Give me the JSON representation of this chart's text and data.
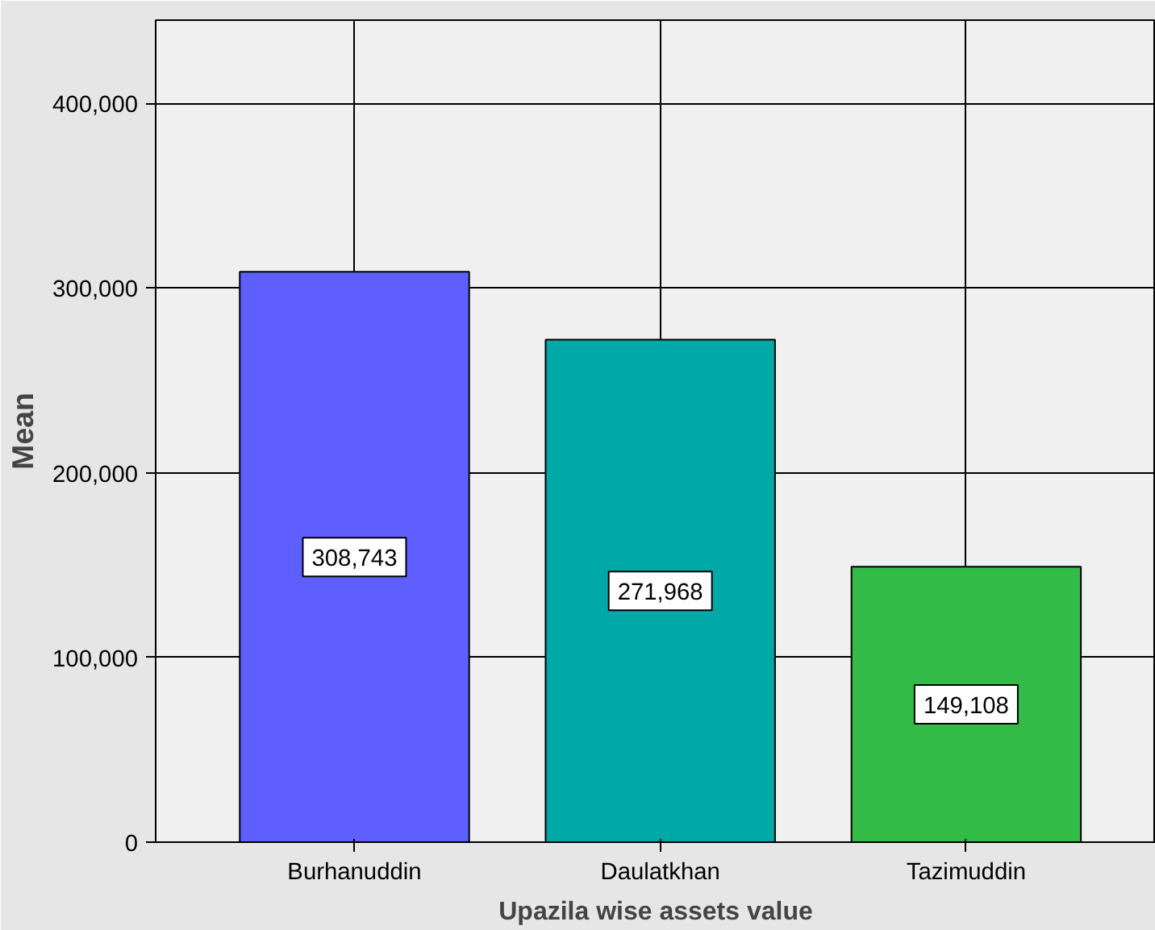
{
  "chart_data": {
    "type": "bar",
    "xlabel": "Upazila wise assets value",
    "ylabel": "Mean",
    "categories": [
      "Burhanuddin",
      "Daulatkhan",
      "Tazimuddin"
    ],
    "values": [
      308743,
      271968,
      149108
    ],
    "colors": [
      "#5f5fff",
      "#00a8a8",
      "#33bb47"
    ],
    "value_labels": [
      "308,743",
      "271,968",
      "149,108"
    ],
    "ylim": [
      0,
      445000
    ],
    "yticks": [
      {
        "value": 0,
        "label": "0"
      },
      {
        "value": 100000,
        "label": "100,000"
      },
      {
        "value": 200000,
        "label": "200,000"
      },
      {
        "value": 300000,
        "label": "300,000"
      },
      {
        "value": 400000,
        "label": "400,000"
      }
    ],
    "grid": true
  }
}
